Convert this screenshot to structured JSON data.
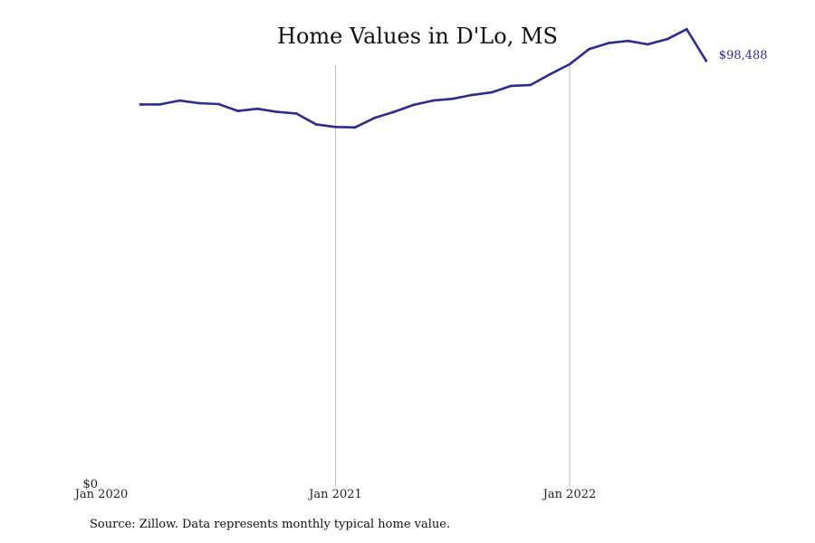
{
  "chart_data": {
    "type": "line",
    "title": "Home Values in D'Lo, MS",
    "xlabel": "",
    "ylabel": "",
    "source": "Source: Zillow. Data represents monthly typical home value.",
    "x": [
      "2020-03",
      "2020-04",
      "2020-05",
      "2020-06",
      "2020-07",
      "2020-08",
      "2020-09",
      "2020-10",
      "2020-11",
      "2020-12",
      "2021-01",
      "2021-02",
      "2021-03",
      "2021-04",
      "2021-05",
      "2021-06",
      "2021-07",
      "2021-08",
      "2021-09",
      "2021-10",
      "2021-11",
      "2021-12",
      "2022-01",
      "2022-02",
      "2022-03",
      "2022-04",
      "2022-05",
      "2022-06",
      "2022-07",
      "2022-08"
    ],
    "series": [
      {
        "color": "#2e2a94",
        "values": [
          88400,
          88400,
          89300,
          88700,
          88500,
          86900,
          87400,
          86700,
          86300,
          83800,
          83200,
          83100,
          85300,
          86700,
          88300,
          89300,
          89700,
          90600,
          91200,
          92700,
          92900,
          95400,
          97700,
          101200,
          102600,
          103100,
          102300,
          103500,
          105800,
          98488
        ]
      }
    ],
    "x_ticks": [
      "Jan 2020",
      "Jan 2021",
      "Jan 2022"
    ],
    "y_ticks": [
      "$0"
    ],
    "end_label": "$98,488",
    "xlim": [
      "2020-01",
      "2022-11"
    ],
    "ylim": [
      0,
      100000
    ],
    "grid": "vertical at year ticks",
    "legend": "none"
  }
}
